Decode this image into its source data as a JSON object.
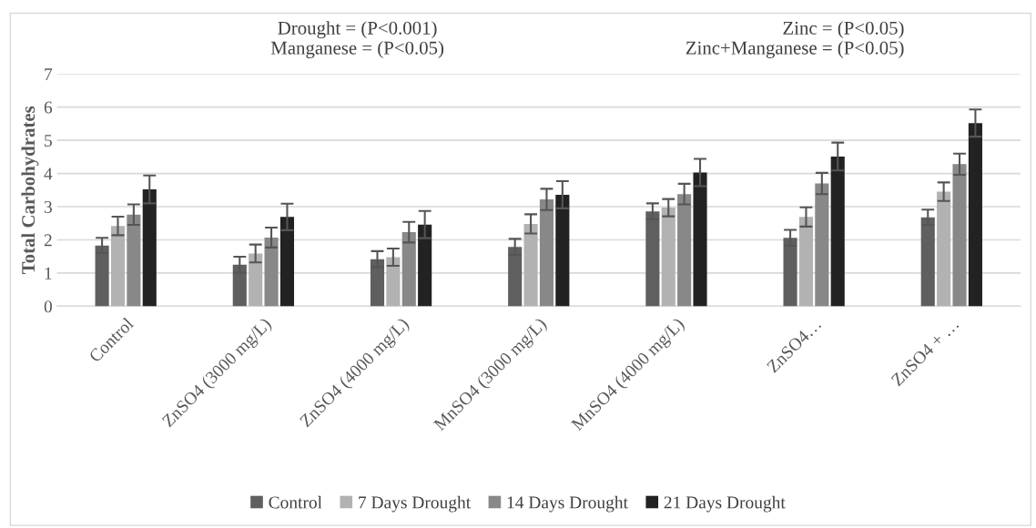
{
  "chart_data": {
    "type": "bar",
    "ylabel": "Total Carbohydrates",
    "annotations": [
      "Drought = (P<0.001)\nManganese = (P<0.05)",
      "Zinc = (P<0.05)\nZinc+Manganese = (P<0.05)"
    ],
    "categories": [
      "Control",
      "ZnSO4 (3000 mg/L)",
      "ZnSO4 (4000 mg/L)",
      "MnSO4 (3000 mg/L)",
      "MnSO4 (4000 mg/L)",
      "ZnSO4…",
      "ZnSO4 + …"
    ],
    "series": [
      {
        "name": "Control",
        "color": "#5f5f5f",
        "values": [
          1.83,
          1.25,
          1.42,
          1.79,
          2.86,
          2.06,
          2.68
        ],
        "errors": [
          0.23,
          0.24,
          0.24,
          0.24,
          0.24,
          0.24,
          0.23
        ]
      },
      {
        "name": "7 Days Drought",
        "color": "#b2b2b2",
        "values": [
          2.42,
          1.59,
          1.48,
          2.48,
          2.97,
          2.69,
          3.45
        ],
        "errors": [
          0.28,
          0.27,
          0.26,
          0.29,
          0.26,
          0.29,
          0.28
        ]
      },
      {
        "name": "14 Days Drought",
        "color": "#888888",
        "values": [
          2.76,
          2.07,
          2.23,
          3.22,
          3.38,
          3.7,
          4.28
        ],
        "errors": [
          0.31,
          0.3,
          0.31,
          0.32,
          0.31,
          0.32,
          0.32
        ]
      },
      {
        "name": "21 Days Drought",
        "color": "#222222",
        "values": [
          3.52,
          2.69,
          2.46,
          3.36,
          4.03,
          4.51,
          5.52
        ],
        "errors": [
          0.42,
          0.4,
          0.41,
          0.41,
          0.41,
          0.42,
          0.41
        ]
      }
    ],
    "ylim": [
      0,
      7
    ],
    "yticks": [
      0,
      1,
      2,
      3,
      4,
      5,
      6,
      7
    ],
    "grid": "y",
    "legend": "bottom"
  }
}
